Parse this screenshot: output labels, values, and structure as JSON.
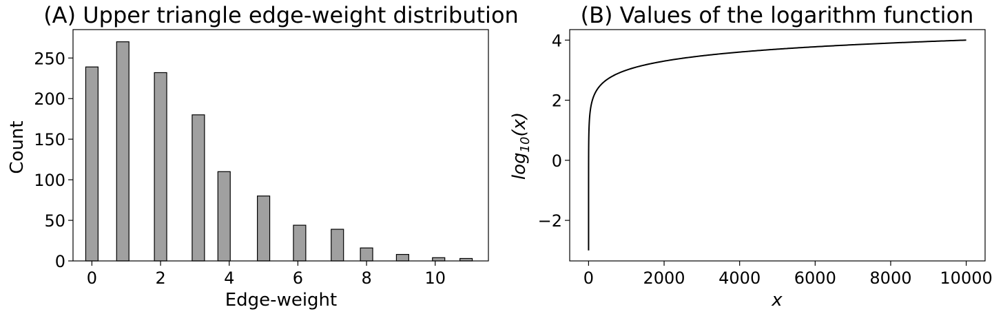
{
  "chart_data": [
    {
      "type": "bar",
      "title": "(A) Upper triangle edge-weight distribution",
      "xlabel": "Edge-weight",
      "ylabel": "Count",
      "xlim": [
        -0.55,
        11.55
      ],
      "ylim": [
        0,
        285
      ],
      "xticks": [
        0,
        2,
        4,
        6,
        8,
        10
      ],
      "xtick_labels": [
        "0",
        "2",
        "4",
        "6",
        "8",
        "10"
      ],
      "yticks": [
        0,
        50,
        100,
        150,
        200,
        250
      ],
      "ytick_labels": [
        "0",
        "50",
        "100",
        "150",
        "200",
        "250"
      ],
      "bar_width": 0.36,
      "bar_color": "#a0a0a0",
      "edge_color": "#000000",
      "x": [
        0,
        0.9,
        2,
        3.1,
        3.85,
        5,
        6.05,
        7.15,
        8,
        9.05,
        10.1,
        10.9
      ],
      "values": [
        239,
        270,
        232,
        180,
        110,
        80,
        44,
        39,
        16,
        8,
        4,
        3
      ],
      "grid": false
    },
    {
      "type": "line",
      "title": "(B) Values of the logarithm function",
      "xlabel": "x",
      "ylabel_base": "log",
      "ylabel_sub": "10",
      "ylabel_arg": "(x)",
      "xlim": [
        -500,
        10500
      ],
      "ylim": [
        -3.35,
        4.35
      ],
      "xticks": [
        0,
        2000,
        4000,
        6000,
        8000,
        10000
      ],
      "xtick_labels": [
        "0",
        "2000",
        "4000",
        "6000",
        "8000",
        "10000"
      ],
      "yticks": [
        -2,
        0,
        2,
        4
      ],
      "ytick_labels": [
        "−2",
        "0",
        "2",
        "4"
      ],
      "function": "log10",
      "x_range": [
        0.001,
        10000
      ],
      "line_color": "#000000",
      "grid": false
    }
  ]
}
